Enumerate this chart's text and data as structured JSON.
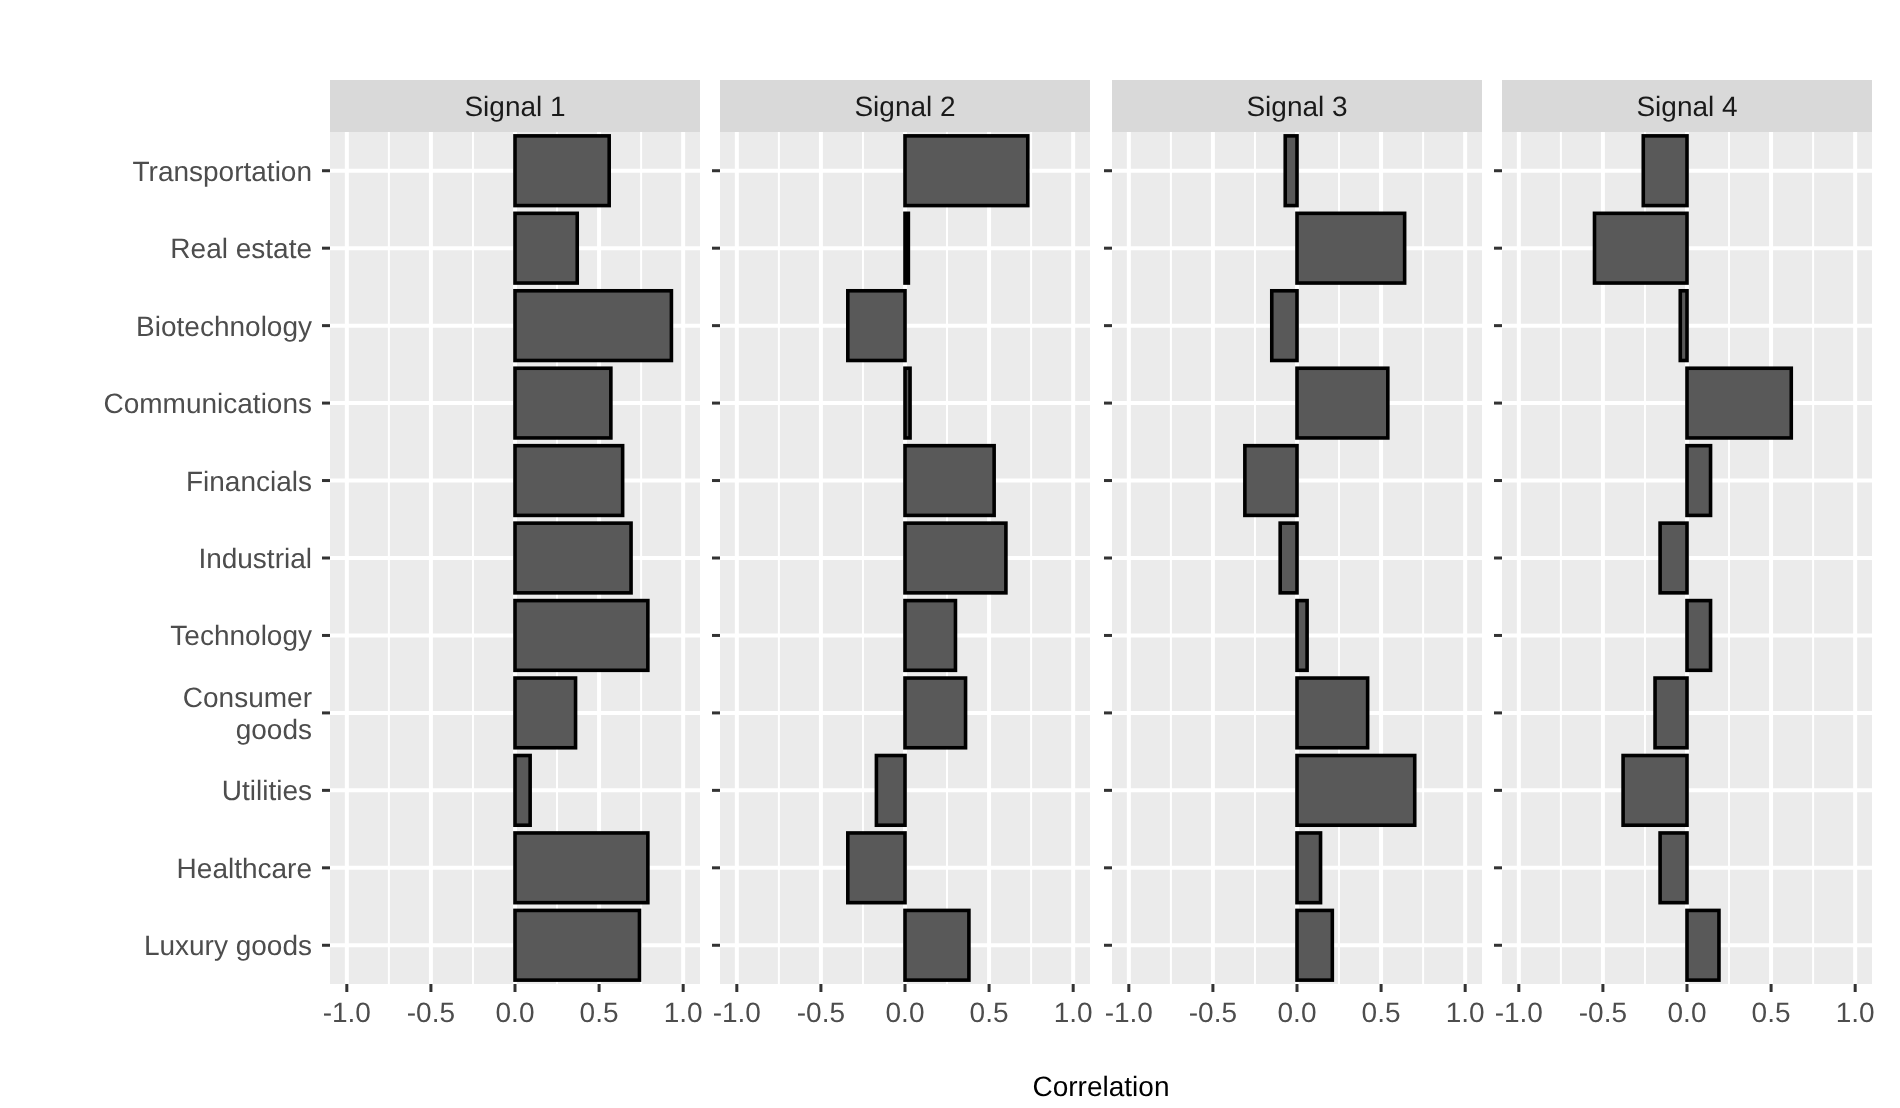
{
  "chart_data": [
    {
      "type": "bar",
      "orientation": "horizontal",
      "title": "Signal 1",
      "annotations": [
        "Correlation"
      ],
      "categories": [
        "Transportation",
        "Real estate",
        "Biotechnology",
        "Communications",
        "Financials",
        "Industrial",
        "Technology",
        "Consumer\ngoods",
        "Utilities",
        "Healthcare",
        "Luxury goods"
      ],
      "values": [
        0.56,
        0.37,
        0.93,
        0.57,
        0.64,
        0.69,
        0.79,
        0.36,
        0.09,
        0.79,
        0.74
      ],
      "color": "#595959",
      "xlim": [
        -1.1,
        1.1
      ],
      "xticks": [
        {
          "value": -1,
          "label": "-1.0"
        },
        {
          "value": -0.5,
          "label": "-0.5"
        },
        {
          "value": 0,
          "label": "0.0"
        },
        {
          "value": 0.5,
          "label": "0.5"
        },
        {
          "value": 1,
          "label": "1.0"
        }
      ],
      "grid": true
    },
    {
      "type": "bar",
      "orientation": "horizontal",
      "title": "Signal 2",
      "values": [
        0.73,
        0.02,
        -0.34,
        0.03,
        0.53,
        0.6,
        0.3,
        0.36,
        -0.17,
        -0.34,
        0.38
      ],
      "color": "#595959",
      "xlim": [
        -1.1,
        1.1
      ],
      "xticks": [
        {
          "value": -1,
          "label": "-1.0"
        },
        {
          "value": -0.5,
          "label": "-0.5"
        },
        {
          "value": 0,
          "label": "0.0"
        },
        {
          "value": 0.5,
          "label": "0.5"
        },
        {
          "value": 1,
          "label": "1.0"
        }
      ],
      "grid": true,
      "tick_labels": "x"
    },
    {
      "type": "bar",
      "orientation": "horizontal",
      "title": "Signal 3",
      "values": [
        -0.07,
        0.64,
        -0.15,
        0.54,
        -0.31,
        -0.1,
        0.06,
        0.42,
        0.7,
        0.14,
        0.21
      ],
      "color": "#595959",
      "xlim": [
        -1.1,
        1.1
      ],
      "xticks": [
        {
          "value": -1,
          "label": "-1.0"
        },
        {
          "value": -0.5,
          "label": "-0.5"
        },
        {
          "value": 0,
          "label": "0.0"
        },
        {
          "value": 0.5,
          "label": "0.5"
        },
        {
          "value": 1,
          "label": "1.0"
        }
      ],
      "grid": true,
      "tick_labels": "x"
    },
    {
      "type": "bar",
      "orientation": "horizontal",
      "title": "Signal 4",
      "values": [
        -0.26,
        -0.55,
        -0.04,
        0.62,
        0.14,
        -0.16,
        0.14,
        -0.19,
        -0.38,
        -0.16,
        0.19
      ],
      "color": "#595959",
      "xlim": [
        -1.1,
        1.1
      ],
      "xticks": [
        {
          "value": -1,
          "label": "-1.0"
        },
        {
          "value": -0.5,
          "label": "-0.5"
        },
        {
          "value": 0,
          "label": "0.0"
        },
        {
          "value": 0.5,
          "label": "0.5"
        },
        {
          "value": 1,
          "label": "1.0"
        }
      ],
      "grid": true,
      "tick_labels": "x"
    }
  ]
}
